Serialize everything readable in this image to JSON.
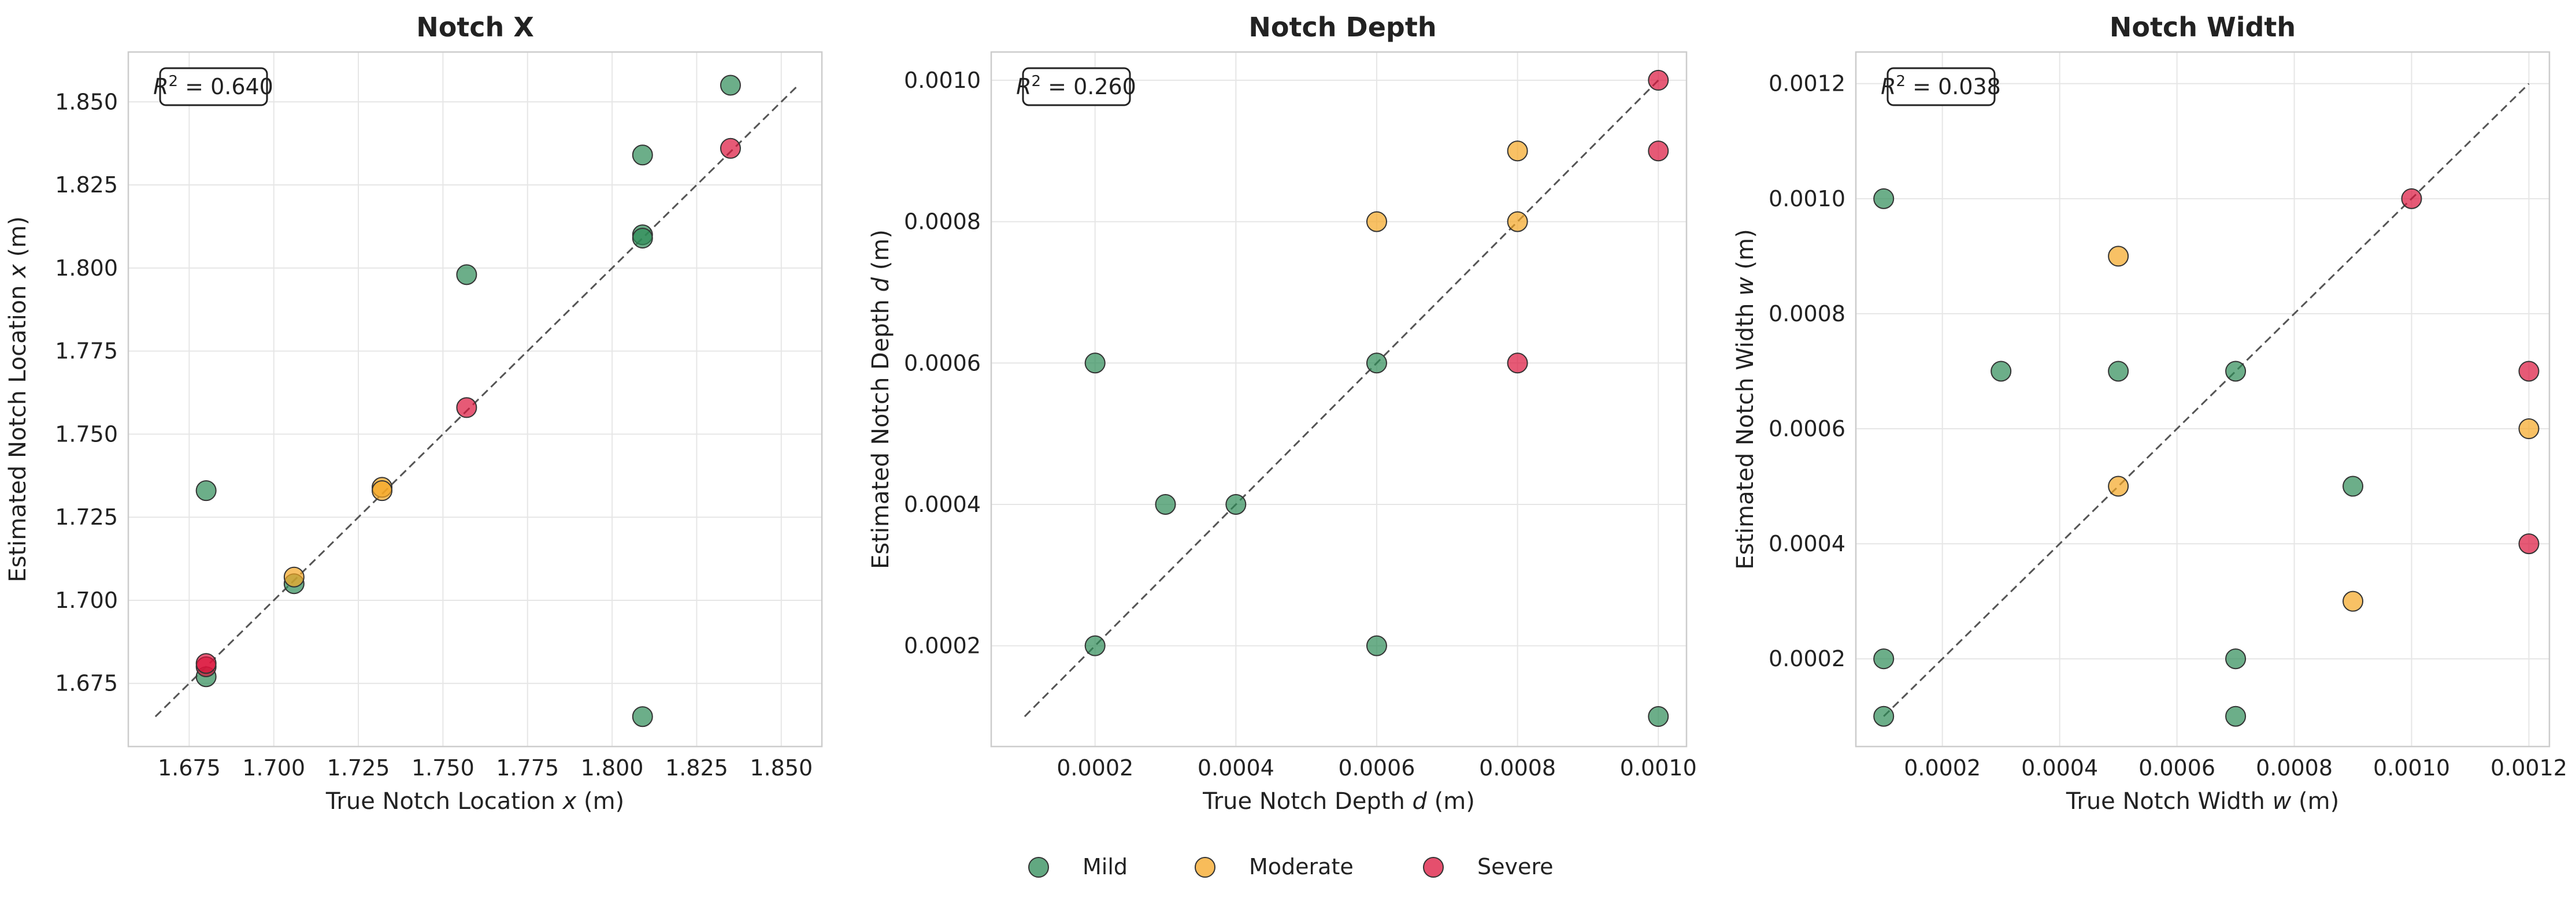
{
  "legend": {
    "placement": "bottom-center",
    "items": [
      {
        "label": "Mild",
        "color": "#2e8b57"
      },
      {
        "label": "Moderate",
        "color": "#f5a623"
      },
      {
        "label": "Severe",
        "color": "#dc143c"
      }
    ]
  },
  "chart_data": [
    {
      "type": "scatter",
      "title": "Notch X",
      "xlabel": "True Notch Location x (m)",
      "ylabel": "Estimated Notch Location x (m)",
      "symbol": "x",
      "xlim": [
        1.657,
        1.862
      ],
      "ylim": [
        1.656,
        1.865
      ],
      "xticks": [
        "1.675",
        "1.700",
        "1.725",
        "1.750",
        "1.775",
        "1.800",
        "1.825",
        "1.850"
      ],
      "yticks": [
        "1.675",
        "1.700",
        "1.725",
        "1.750",
        "1.775",
        "1.800",
        "1.825",
        "1.850"
      ],
      "grid": true,
      "annotation": "0.640",
      "reference_line": [
        1.665,
        1.855
      ],
      "series": [
        {
          "name": "Mild",
          "points": [
            [
              1.68,
              1.733
            ],
            [
              1.68,
              1.677
            ],
            [
              1.706,
              1.705
            ],
            [
              1.757,
              1.798
            ],
            [
              1.809,
              1.834
            ],
            [
              1.809,
              1.81
            ],
            [
              1.809,
              1.809
            ],
            [
              1.809,
              1.665
            ],
            [
              1.835,
              1.855
            ]
          ]
        },
        {
          "name": "Moderate",
          "points": [
            [
              1.706,
              1.707
            ],
            [
              1.732,
              1.734
            ],
            [
              1.732,
              1.733
            ]
          ]
        },
        {
          "name": "Severe",
          "points": [
            [
              1.68,
              1.68
            ],
            [
              1.68,
              1.681
            ],
            [
              1.757,
              1.758
            ],
            [
              1.835,
              1.836
            ]
          ]
        }
      ]
    },
    {
      "type": "scatter",
      "title": "Notch Depth",
      "xlabel": "True Notch Depth d (m)",
      "ylabel": "Estimated Notch Depth d (m)",
      "symbol": "d",
      "xlim": [
        5.25e-05,
        0.00104
      ],
      "ylim": [
        5.75e-05,
        0.00104
      ],
      "xticks": [
        "0.0002",
        "0.0004",
        "0.0006",
        "0.0008",
        "0.0010"
      ],
      "yticks": [
        "0.0002",
        "0.0004",
        "0.0006",
        "0.0008",
        "0.0010"
      ],
      "grid": true,
      "annotation": "0.260",
      "reference_line": [
        0.0001,
        0.001
      ],
      "series": [
        {
          "name": "Mild",
          "points": [
            [
              0.0002,
              0.0006
            ],
            [
              0.0002,
              0.0002
            ],
            [
              0.0003,
              0.0004
            ],
            [
              0.0004,
              0.0004
            ],
            [
              0.0006,
              0.0006
            ],
            [
              0.0006,
              0.0002
            ],
            [
              0.001,
              0.0001
            ]
          ]
        },
        {
          "name": "Moderate",
          "points": [
            [
              0.0006,
              0.0008
            ],
            [
              0.0008,
              0.0009
            ],
            [
              0.0008,
              0.0008
            ]
          ]
        },
        {
          "name": "Severe",
          "points": [
            [
              0.0008,
              0.0006
            ],
            [
              0.001,
              0.001
            ],
            [
              0.001,
              0.0009
            ]
          ]
        }
      ]
    },
    {
      "type": "scatter",
      "title": "Notch Width",
      "xlabel": "True Notch Width w (m)",
      "ylabel": "Estimated Notch Width w (m)",
      "symbol": "w",
      "xlim": [
        5.25e-05,
        0.001235
      ],
      "ylim": [
        4.75e-05,
        0.001255
      ],
      "xticks": [
        "0.0002",
        "0.0004",
        "0.0006",
        "0.0008",
        "0.0010",
        "0.0012"
      ],
      "yticks": [
        "0.0002",
        "0.0004",
        "0.0006",
        "0.0008",
        "0.0010",
        "0.0012"
      ],
      "grid": true,
      "annotation": "0.038",
      "reference_line": [
        0.0001,
        0.0012
      ],
      "series": [
        {
          "name": "Mild",
          "points": [
            [
              0.0001,
              0.001
            ],
            [
              0.0001,
              0.0002
            ],
            [
              0.0001,
              0.0001
            ],
            [
              0.0003,
              0.0007
            ],
            [
              0.0005,
              0.0007
            ],
            [
              0.0007,
              0.0007
            ],
            [
              0.0007,
              0.0002
            ],
            [
              0.0007,
              0.0001
            ],
            [
              0.0009,
              0.0005
            ]
          ]
        },
        {
          "name": "Moderate",
          "points": [
            [
              0.0005,
              0.0009
            ],
            [
              0.0005,
              0.0005
            ],
            [
              0.0009,
              0.0003
            ],
            [
              0.0012,
              0.0006
            ]
          ]
        },
        {
          "name": "Severe",
          "points": [
            [
              0.001,
              0.001
            ],
            [
              0.0012,
              0.0007
            ],
            [
              0.0012,
              0.0004
            ]
          ]
        }
      ]
    }
  ]
}
